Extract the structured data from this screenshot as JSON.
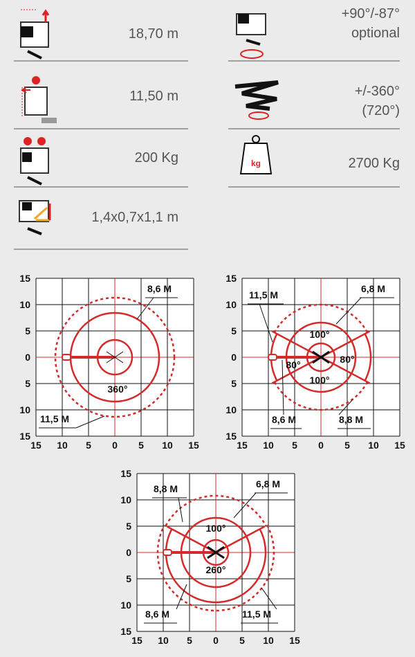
{
  "specs_left": [
    {
      "value": "18,70 m"
    },
    {
      "value": "11,50 m"
    },
    {
      "value": "200 Kg"
    },
    {
      "value": "1,4x0,7x1,1 m"
    }
  ],
  "specs_right": [
    {
      "lines": [
        "+90°/-87°",
        "optional"
      ]
    },
    {
      "lines": [
        "+/-360°",
        "(720°)"
      ]
    },
    {
      "lines": [
        "2700 Kg"
      ],
      "icon_label": "kg"
    }
  ],
  "diagrams": [
    {
      "x_labels": [
        15,
        10,
        5,
        0,
        5,
        10,
        15
      ],
      "y_labels": [
        15,
        10,
        5,
        0,
        5,
        10,
        15
      ],
      "annotations": [
        "8,6 M",
        "11,5 M",
        "360°"
      ]
    },
    {
      "x_labels": [
        15,
        10,
        5,
        0,
        5,
        10,
        15
      ],
      "y_labels": [
        15,
        10,
        5,
        0,
        5,
        10,
        15
      ],
      "annotations": [
        "11,5 M",
        "6,8 M",
        "100°",
        "80°",
        "80°",
        "100°",
        "8,6 M",
        "8,8 M"
      ]
    },
    {
      "x_labels": [
        15,
        10,
        5,
        0,
        5,
        10,
        15
      ],
      "y_labels": [
        15,
        10,
        5,
        0,
        5,
        10,
        15
      ],
      "annotations": [
        "8,8 M",
        "6,8 M",
        "100°",
        "260°",
        "8,6 M",
        "11,5 M"
      ]
    }
  ]
}
